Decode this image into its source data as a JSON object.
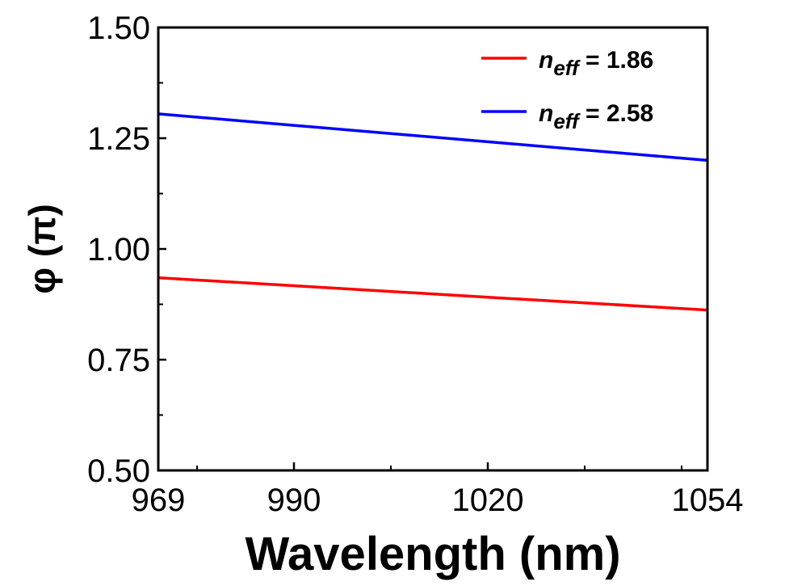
{
  "chart_data": {
    "type": "line",
    "xlabel": "Wavelength (nm)",
    "ylabel": "φ (π)",
    "xlim": [
      969,
      1054
    ],
    "ylim": [
      0.5,
      1.5
    ],
    "x_ticks": [
      969,
      990,
      1020,
      1054
    ],
    "x_tick_labels": [
      "969",
      "990",
      "1020",
      "1054"
    ],
    "x_minor_ticks": [
      975,
      1005,
      1035,
      1050
    ],
    "y_ticks": [
      0.5,
      0.75,
      1.0,
      1.25,
      1.5
    ],
    "y_tick_labels": [
      "0.50",
      "0.75",
      "1.00",
      "1.25",
      "1.50"
    ],
    "grid": false,
    "legend_position": "top-right",
    "series": [
      {
        "name": "n_eff = 1.86",
        "legend": {
          "main": "n",
          "sub": "eff",
          "rest": " = 1.86"
        },
        "color": "#ff0000",
        "x": [
          969,
          990,
          1020,
          1054
        ],
        "y": [
          0.935,
          0.917,
          0.891,
          0.862
        ]
      },
      {
        "name": "n_eff = 2.58",
        "legend": {
          "main": "n",
          "sub": "eff",
          "rest": " = 2.58"
        },
        "color": "#0000ff",
        "x": [
          969,
          990,
          1020,
          1054
        ],
        "y": [
          1.305,
          1.279,
          1.242,
          1.2
        ]
      }
    ]
  }
}
